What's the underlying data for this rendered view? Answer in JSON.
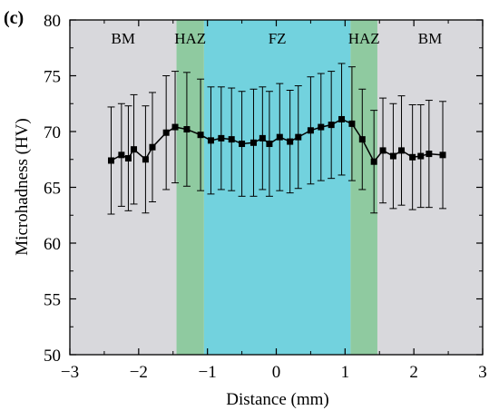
{
  "chart_data": {
    "type": "line",
    "panel_label": "(c)",
    "xlabel": "Distance (mm)",
    "ylabel": "Microhadness (HV)",
    "xlim": [
      -3,
      3
    ],
    "ylim": [
      50,
      80
    ],
    "x_ticks": [
      -3,
      -2,
      -1,
      0,
      1,
      2,
      3
    ],
    "y_ticks": [
      50,
      55,
      60,
      65,
      70,
      75,
      80
    ],
    "x_tick_labels": [
      "−3",
      "−2",
      "−1",
      "0",
      "1",
      "2",
      "3"
    ],
    "y_tick_labels": [
      "50",
      "55",
      "60",
      "65",
      "70",
      "75",
      "80"
    ],
    "grid": false,
    "zones": [
      {
        "label": "BM",
        "x0": -3.0,
        "x1": -1.45,
        "color": "#d8d8dc"
      },
      {
        "label": "HAZ",
        "x0": -1.45,
        "x1": -1.05,
        "color": "#8fcaa0"
      },
      {
        "label": "FZ",
        "x0": -1.05,
        "x1": 1.08,
        "color": "#72d2de"
      },
      {
        "label": "HAZ",
        "x0": 1.08,
        "x1": 1.47,
        "color": "#8fcaa0"
      },
      {
        "label": "BM",
        "x0": 1.47,
        "x1": 3.0,
        "color": "#d8d8dc"
      }
    ],
    "series": [
      {
        "marker": "square",
        "color": "#000000",
        "x": [
          -2.4,
          -2.25,
          -2.15,
          -2.07,
          -1.9,
          -1.8,
          -1.6,
          -1.47,
          -1.3,
          -1.1,
          -0.95,
          -0.8,
          -0.65,
          -0.5,
          -0.33,
          -0.2,
          -0.1,
          0.05,
          0.2,
          0.32,
          0.5,
          0.65,
          0.8,
          0.95,
          1.1,
          1.25,
          1.42,
          1.55,
          1.7,
          1.82,
          1.98,
          2.1,
          2.22,
          2.42
        ],
        "y": [
          67.4,
          67.9,
          67.6,
          68.4,
          67.5,
          68.6,
          69.9,
          70.4,
          70.2,
          69.7,
          69.2,
          69.4,
          69.3,
          68.9,
          69.0,
          69.4,
          68.9,
          69.5,
          69.1,
          69.5,
          70.1,
          70.4,
          70.6,
          71.1,
          70.7,
          69.3,
          67.3,
          68.3,
          67.8,
          68.3,
          67.7,
          67.8,
          68.0,
          67.9
        ],
        "error": [
          4.8,
          4.6,
          4.7,
          4.9,
          4.8,
          4.9,
          5.1,
          5.0,
          5.1,
          5.0,
          4.8,
          4.6,
          4.6,
          4.7,
          4.8,
          4.6,
          4.7,
          4.8,
          4.6,
          4.6,
          4.8,
          4.8,
          4.8,
          5.0,
          5.1,
          4.5,
          4.6,
          4.7,
          4.7,
          4.9,
          4.7,
          4.6,
          4.8,
          4.8
        ]
      }
    ]
  }
}
